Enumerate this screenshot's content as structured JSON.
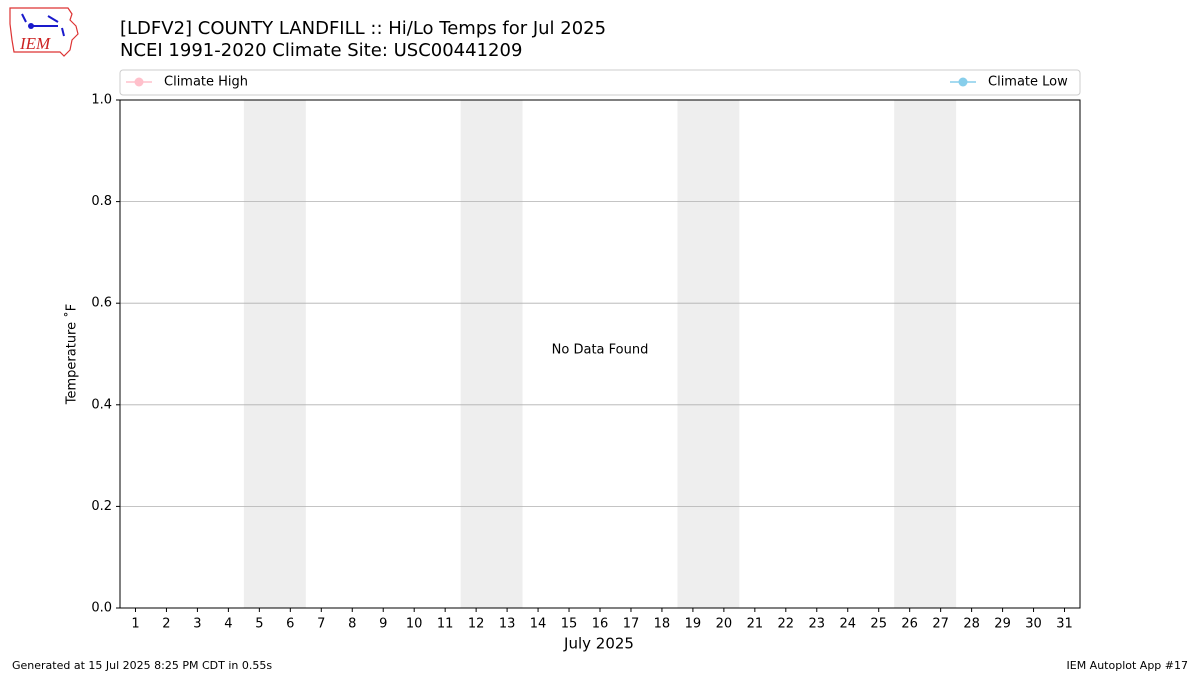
{
  "chart_data": {
    "type": "line",
    "title": "[LDFV2] COUNTY LANDFILL :: Hi/Lo Temps for Jul 2025",
    "subtitle": "NCEI 1991-2020 Climate Site: USC00441209",
    "xlabel": "July 2025",
    "ylabel": "Temperature ˚F",
    "annotation": "No Data Found",
    "x": [
      1,
      2,
      3,
      4,
      5,
      6,
      7,
      8,
      9,
      10,
      11,
      12,
      13,
      14,
      15,
      16,
      17,
      18,
      19,
      20,
      21,
      22,
      23,
      24,
      25,
      26,
      27,
      28,
      29,
      30,
      31
    ],
    "xlim": [
      0.5,
      31.5
    ],
    "xticks": [
      1,
      2,
      3,
      4,
      5,
      6,
      7,
      8,
      9,
      10,
      11,
      12,
      13,
      14,
      15,
      16,
      17,
      18,
      19,
      20,
      21,
      22,
      23,
      24,
      25,
      26,
      27,
      28,
      29,
      30,
      31
    ],
    "ylim": [
      0,
      1
    ],
    "yticks": [
      {
        "value": 0,
        "label": "0.0"
      },
      {
        "value": 0.2,
        "label": "0.2"
      },
      {
        "value": 0.4,
        "label": "0.4"
      },
      {
        "value": 0.6,
        "label": "0.6"
      },
      {
        "value": 0.8,
        "label": "0.8"
      },
      {
        "value": 1,
        "label": "1.0"
      }
    ],
    "grid": true,
    "shaded_spans": [
      [
        4.5,
        6.5
      ],
      [
        11.5,
        13.5
      ],
      [
        18.5,
        20.5
      ],
      [
        25.5,
        27.5
      ]
    ],
    "shade_color": "#eeeeee",
    "series": [
      {
        "name": "Climate High",
        "color": "pink",
        "values": [
          null,
          null,
          null,
          null,
          null,
          null,
          null,
          null,
          null,
          null,
          null,
          null,
          null,
          null,
          null,
          null,
          null,
          null,
          null,
          null,
          null,
          null,
          null,
          null,
          null,
          null,
          null,
          null,
          null,
          null,
          null
        ]
      },
      {
        "name": "Climate Low",
        "color": "skyblue",
        "values": [
          null,
          null,
          null,
          null,
          null,
          null,
          null,
          null,
          null,
          null,
          null,
          null,
          null,
          null,
          null,
          null,
          null,
          null,
          null,
          null,
          null,
          null,
          null,
          null,
          null,
          null,
          null,
          null,
          null,
          null,
          null
        ]
      }
    ],
    "footer_left": "Generated at 15 Jul 2025 8:25 PM CDT in 0.55s",
    "footer_right": "IEM Autoplot App #17",
    "logo_text": "IEM"
  }
}
